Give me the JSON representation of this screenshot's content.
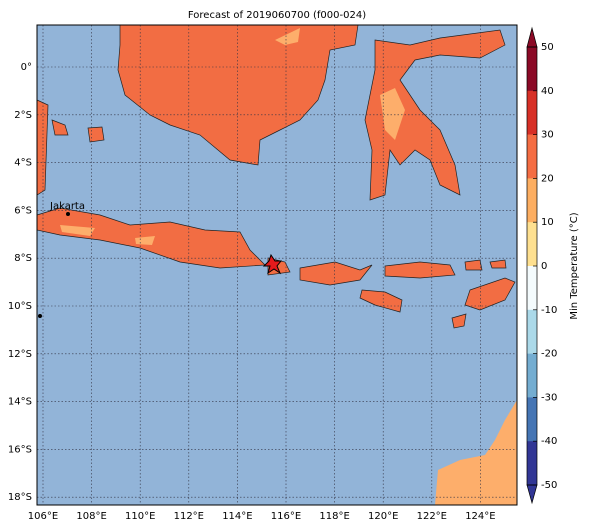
{
  "title": "Forecast of 2019060700 (f000-024)",
  "x_ticks": [
    "106°E",
    "108°E",
    "110°E",
    "112°E",
    "114°E",
    "116°E",
    "118°E",
    "120°E",
    "122°E",
    "124°E"
  ],
  "y_ticks": [
    "0°",
    "2°S",
    "4°S",
    "6°S",
    "8°S",
    "10°S",
    "12°S",
    "14°S",
    "16°S",
    "18°S"
  ],
  "place_label": "Jakarta",
  "colorbar": {
    "label": "Min Temperature (°C)",
    "ticks": [
      50,
      40,
      30,
      20,
      10,
      0,
      -10,
      -20,
      -30,
      -40,
      -50
    ],
    "colors": [
      "#8b0a26",
      "#d73027",
      "#f46d43",
      "#fdae61",
      "#fee090",
      "#f4fbfd",
      "#abd9e9",
      "#74add1",
      "#4575b4",
      "#313695"
    ]
  }
}
